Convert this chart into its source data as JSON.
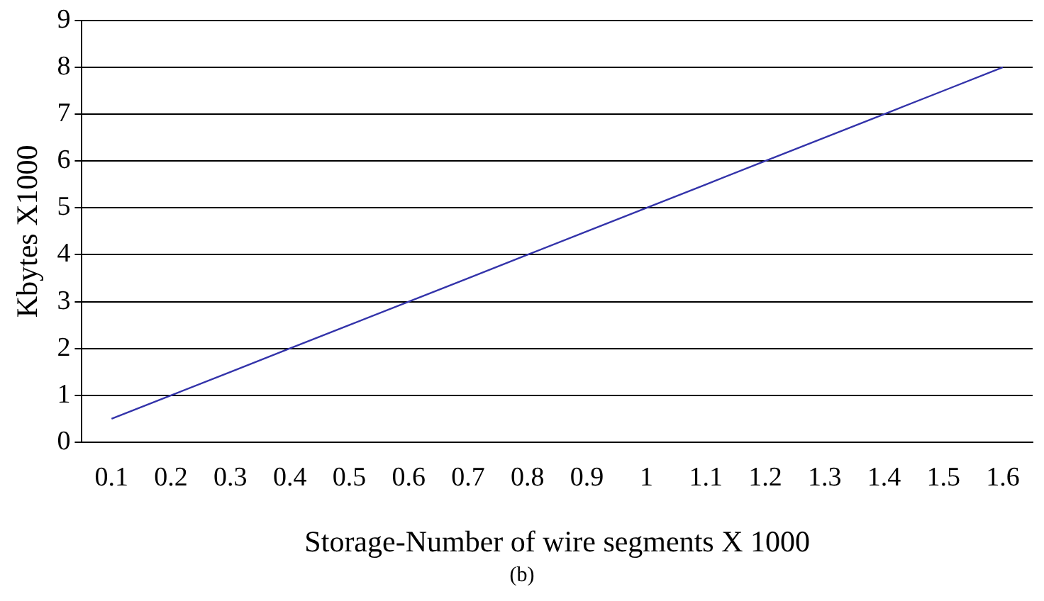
{
  "chart_data": {
    "type": "line",
    "xlabel": "Storage-Number of wire segments X 1000",
    "ylabel": "Kbytes X1000",
    "annotations": [
      "(b)"
    ],
    "categories": [
      "0.1",
      "0.2",
      "0.3",
      "0.4",
      "0.5",
      "0.6",
      "0.7",
      "0.8",
      "0.9",
      "1",
      "1.1",
      "1.2",
      "1.3",
      "1.4",
      "1.5",
      "1.6"
    ],
    "series": [
      {
        "color": "#3333aa",
        "values": [
          0.5,
          1,
          1.5,
          2,
          2.5,
          3,
          3.5,
          4,
          4.5,
          5,
          5.5,
          6,
          6.5,
          7,
          7.5,
          8
        ]
      }
    ],
    "ylim": [
      0,
      9
    ],
    "yticks": [
      0,
      1,
      2,
      3,
      4,
      5,
      6,
      7,
      8,
      9
    ],
    "grid": "y",
    "legend": false,
    "marker": "none",
    "line_style": "solid"
  }
}
